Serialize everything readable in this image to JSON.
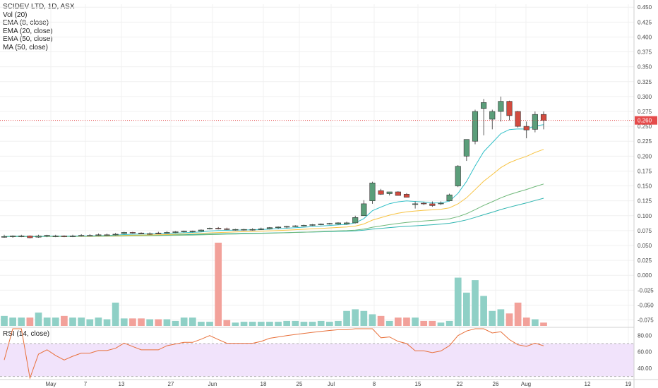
{
  "legend": {
    "title": "SCIDEV LTD, 1D, ASX",
    "studies": [
      "Vol (20)",
      "EMA (8, close)",
      "EMA (20, close)",
      "EMA (50, close)",
      "MA (50, close)"
    ],
    "rsi_label": "RSI (14, close)"
  },
  "last_price_label": "0.260",
  "colors": {
    "up": "#5b9e7a",
    "down": "#d24b3f",
    "vol_up": "#8fd0c6",
    "vol_down": "#f2a19a",
    "ema8": "#33c0c8",
    "ema20": "#f7c342",
    "ema50": "#6fb87a",
    "ma50": "#2fb5b0",
    "rsi": "#e8703a",
    "rsi_band": "#f1e3fb",
    "price_line": "#e54b4b"
  },
  "chart_data": {
    "type": "candlestick",
    "x_tick_labels": [
      "May",
      "7",
      "13",
      "27",
      "Jun",
      "18",
      "25",
      "Jul",
      "8",
      "15",
      "22",
      "26",
      "Aug",
      "12",
      "19"
    ],
    "y_tick_labels": [
      "0.450",
      "0.425",
      "0.400",
      "0.375",
      "0.350",
      "0.325",
      "0.300",
      "0.275",
      "0.250",
      "0.225",
      "0.200",
      "0.175",
      "0.150",
      "0.125",
      "0.100",
      "0.075",
      "0.050",
      "0.025",
      "0.000",
      "-0.025",
      "-0.050",
      "-0.075"
    ],
    "ylim": [
      -0.085,
      0.455
    ],
    "rsi_tick_labels": [
      "80.00",
      "60.00",
      "40.00"
    ],
    "rsi_ylim": [
      28,
      88
    ],
    "rsi_levels": [
      70,
      30
    ],
    "last_price": 0.26,
    "bars": [
      {
        "o": 0.065,
        "h": 0.068,
        "l": 0.063,
        "c": 0.065,
        "v": 0.012
      },
      {
        "o": 0.065,
        "h": 0.067,
        "l": 0.063,
        "c": 0.066,
        "v": 0.01
      },
      {
        "o": 0.066,
        "h": 0.068,
        "l": 0.064,
        "c": 0.066,
        "v": 0.01
      },
      {
        "o": 0.066,
        "h": 0.067,
        "l": 0.062,
        "c": 0.063,
        "v": 0.01
      },
      {
        "o": 0.064,
        "h": 0.068,
        "l": 0.063,
        "c": 0.066,
        "v": 0.014
      },
      {
        "o": 0.066,
        "h": 0.068,
        "l": 0.064,
        "c": 0.067,
        "v": 0.01
      },
      {
        "o": 0.066,
        "h": 0.068,
        "l": 0.064,
        "c": 0.066,
        "v": 0.01
      },
      {
        "o": 0.066,
        "h": 0.067,
        "l": 0.064,
        "c": 0.065,
        "v": 0.012
      },
      {
        "o": 0.066,
        "h": 0.068,
        "l": 0.064,
        "c": 0.066,
        "v": 0.01
      },
      {
        "o": 0.066,
        "h": 0.069,
        "l": 0.065,
        "c": 0.067,
        "v": 0.01
      },
      {
        "o": 0.067,
        "h": 0.069,
        "l": 0.066,
        "c": 0.067,
        "v": 0.008
      },
      {
        "o": 0.067,
        "h": 0.07,
        "l": 0.066,
        "c": 0.068,
        "v": 0.01
      },
      {
        "o": 0.068,
        "h": 0.07,
        "l": 0.066,
        "c": 0.068,
        "v": 0.008
      },
      {
        "o": 0.068,
        "h": 0.071,
        "l": 0.067,
        "c": 0.069,
        "v": 0.01
      },
      {
        "o": 0.07,
        "h": 0.073,
        "l": 0.069,
        "c": 0.072,
        "v": 0.009
      },
      {
        "o": 0.072,
        "h": 0.073,
        "l": 0.07,
        "c": 0.071,
        "v": 0.009
      },
      {
        "o": 0.071,
        "h": 0.072,
        "l": 0.069,
        "c": 0.07,
        "v": 0.009
      },
      {
        "o": 0.069,
        "h": 0.072,
        "l": 0.068,
        "c": 0.07,
        "v": 0.008
      },
      {
        "o": 0.071,
        "h": 0.073,
        "l": 0.069,
        "c": 0.07,
        "v": 0.008
      },
      {
        "o": 0.071,
        "h": 0.074,
        "l": 0.07,
        "c": 0.072,
        "v": 0.008
      },
      {
        "o": 0.072,
        "h": 0.074,
        "l": 0.071,
        "c": 0.073,
        "v": 0.006
      },
      {
        "o": 0.073,
        "h": 0.075,
        "l": 0.072,
        "c": 0.074,
        "v": 0.01
      },
      {
        "o": 0.074,
        "h": 0.075,
        "l": 0.072,
        "c": 0.074,
        "v": 0.006
      },
      {
        "o": 0.074,
        "h": 0.077,
        "l": 0.073,
        "c": 0.076,
        "v": 0.005
      },
      {
        "o": 0.078,
        "h": 0.08,
        "l": 0.077,
        "c": 0.079,
        "v": 0.005
      },
      {
        "o": 0.079,
        "h": 0.081,
        "l": 0.077,
        "c": 0.078,
        "v": 0.006
      },
      {
        "o": 0.078,
        "h": 0.08,
        "l": 0.076,
        "c": 0.077,
        "v": 0.007
      },
      {
        "o": 0.076,
        "h": 0.078,
        "l": 0.075,
        "c": 0.077,
        "v": 0.004
      },
      {
        "o": 0.077,
        "h": 0.078,
        "l": 0.075,
        "c": 0.077,
        "v": 0.005
      },
      {
        "o": 0.077,
        "h": 0.079,
        "l": 0.075,
        "c": 0.077,
        "v": 0.005
      },
      {
        "o": 0.077,
        "h": 0.08,
        "l": 0.076,
        "c": 0.078,
        "v": 0.005
      },
      {
        "o": 0.078,
        "h": 0.081,
        "l": 0.077,
        "c": 0.08,
        "v": 0.005
      },
      {
        "o": 0.08,
        "h": 0.082,
        "l": 0.078,
        "c": 0.081,
        "v": 0.005
      },
      {
        "o": 0.081,
        "h": 0.083,
        "l": 0.079,
        "c": 0.082,
        "v": 0.006
      },
      {
        "o": 0.082,
        "h": 0.084,
        "l": 0.081,
        "c": 0.083,
        "v": 0.006
      },
      {
        "o": 0.083,
        "h": 0.085,
        "l": 0.082,
        "c": 0.084,
        "v": 0.005
      },
      {
        "o": 0.084,
        "h": 0.086,
        "l": 0.083,
        "c": 0.085,
        "v": 0.005
      },
      {
        "o": 0.085,
        "h": 0.087,
        "l": 0.084,
        "c": 0.086,
        "v": 0.006
      },
      {
        "o": 0.086,
        "h": 0.088,
        "l": 0.085,
        "c": 0.087,
        "v": 0.005
      },
      {
        "o": 0.086,
        "h": 0.089,
        "l": 0.085,
        "c": 0.088,
        "v": 0.006
      }
    ]
  }
}
